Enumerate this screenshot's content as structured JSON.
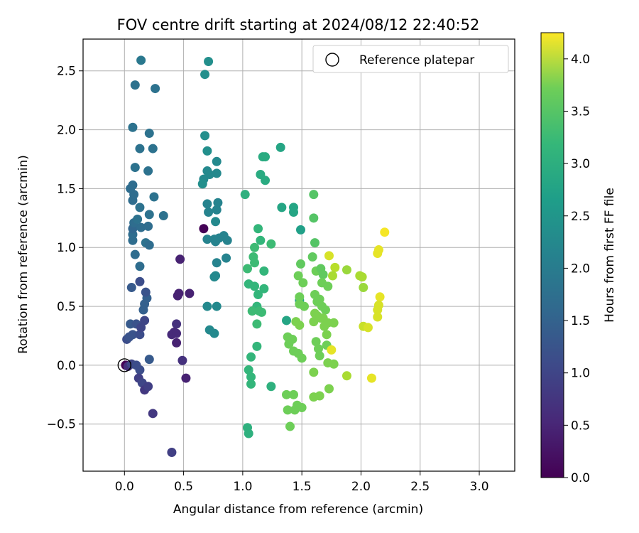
{
  "chart_data": {
    "type": "scatter",
    "title": "FOV centre drift starting at 2024/08/12 22:40:52",
    "xlabel": "Angular distance from reference (arcmin)",
    "ylabel": "Rotation from reference (arcmin)",
    "xlim": [
      -0.35,
      3.3
    ],
    "ylim": [
      -0.9,
      2.77
    ],
    "xticks": [
      0.0,
      0.5,
      1.0,
      1.5,
      2.0,
      2.5,
      3.0
    ],
    "xtick_labels": [
      "0.0",
      "0.5",
      "1.0",
      "1.5",
      "2.0",
      "2.5",
      "3.0"
    ],
    "yticks": [
      -0.5,
      0.0,
      0.5,
      1.0,
      1.5,
      2.0,
      2.5
    ],
    "ytick_labels": [
      "−0.5",
      "0.0",
      "0.5",
      "1.0",
      "1.5",
      "2.0",
      "2.5"
    ],
    "grid": true,
    "legend": {
      "position": "upper-right",
      "entries": [
        {
          "label": "Reference platepar",
          "marker": "open-circle",
          "x": 0.0,
          "y": 0.0
        }
      ]
    },
    "colorbar": {
      "label": "Hours from first FF file",
      "colormap": "viridis",
      "range": [
        0.0,
        4.25
      ],
      "ticks": [
        0.0,
        0.5,
        1.0,
        1.5,
        2.0,
        2.5,
        3.0,
        3.5,
        4.0
      ],
      "tick_labels": [
        "0.0",
        "0.5",
        "1.0",
        "1.5",
        "2.0",
        "2.5",
        "3.0",
        "3.5",
        "4.0"
      ]
    },
    "points": [
      {
        "x": 0.01,
        "y": 0.0,
        "c": 0.02
      },
      {
        "x": 0.03,
        "y": -0.01,
        "c": 0.6
      },
      {
        "x": 0.06,
        "y": 0.01,
        "c": 0.9
      },
      {
        "x": 0.1,
        "y": 0.0,
        "c": 1.0
      },
      {
        "x": 0.13,
        "y": -0.04,
        "c": 1.0
      },
      {
        "x": 0.12,
        "y": -0.11,
        "c": 0.8
      },
      {
        "x": 0.15,
        "y": -0.15,
        "c": 0.9
      },
      {
        "x": 0.17,
        "y": -0.21,
        "c": 0.7
      },
      {
        "x": 0.2,
        "y": -0.18,
        "c": 0.8
      },
      {
        "x": 0.21,
        "y": 0.05,
        "c": 1.2
      },
      {
        "x": 0.24,
        "y": -0.41,
        "c": 0.7
      },
      {
        "x": 0.4,
        "y": -0.74,
        "c": 0.8
      },
      {
        "x": 0.02,
        "y": 0.22,
        "c": 1.0
      },
      {
        "x": 0.04,
        "y": 0.24,
        "c": 1.1
      },
      {
        "x": 0.07,
        "y": 0.26,
        "c": 1.1
      },
      {
        "x": 0.13,
        "y": 0.26,
        "c": 1.0
      },
      {
        "x": 0.05,
        "y": 0.35,
        "c": 1.2
      },
      {
        "x": 0.1,
        "y": 0.35,
        "c": 1.1
      },
      {
        "x": 0.14,
        "y": 0.32,
        "c": 0.9
      },
      {
        "x": 0.17,
        "y": 0.38,
        "c": 0.9
      },
      {
        "x": 0.16,
        "y": 0.47,
        "c": 1.3
      },
      {
        "x": 0.17,
        "y": 0.52,
        "c": 1.3
      },
      {
        "x": 0.19,
        "y": 0.57,
        "c": 1.3
      },
      {
        "x": 0.18,
        "y": 0.62,
        "c": 1.1
      },
      {
        "x": 0.13,
        "y": 0.71,
        "c": 1.0
      },
      {
        "x": 0.06,
        "y": 0.66,
        "c": 1.2
      },
      {
        "x": 0.13,
        "y": 0.84,
        "c": 1.5
      },
      {
        "x": 0.09,
        "y": 0.94,
        "c": 1.5
      },
      {
        "x": 0.07,
        "y": 1.06,
        "c": 1.5
      },
      {
        "x": 0.07,
        "y": 1.11,
        "c": 1.5
      },
      {
        "x": 0.18,
        "y": 1.04,
        "c": 1.6
      },
      {
        "x": 0.21,
        "y": 1.02,
        "c": 1.5
      },
      {
        "x": 0.07,
        "y": 1.16,
        "c": 1.4
      },
      {
        "x": 0.14,
        "y": 1.17,
        "c": 1.5
      },
      {
        "x": 0.2,
        "y": 1.18,
        "c": 1.5
      },
      {
        "x": 0.08,
        "y": 1.21,
        "c": 1.5
      },
      {
        "x": 0.11,
        "y": 1.24,
        "c": 1.6
      },
      {
        "x": 0.21,
        "y": 1.28,
        "c": 1.6
      },
      {
        "x": 0.13,
        "y": 1.34,
        "c": 1.6
      },
      {
        "x": 0.07,
        "y": 1.4,
        "c": 1.5
      },
      {
        "x": 0.08,
        "y": 1.45,
        "c": 1.5
      },
      {
        "x": 0.05,
        "y": 1.5,
        "c": 1.5
      },
      {
        "x": 0.07,
        "y": 1.53,
        "c": 1.5
      },
      {
        "x": 0.25,
        "y": 1.43,
        "c": 1.6
      },
      {
        "x": 0.33,
        "y": 1.27,
        "c": 1.6
      },
      {
        "x": 0.2,
        "y": 1.65,
        "c": 1.6
      },
      {
        "x": 0.09,
        "y": 1.68,
        "c": 1.6
      },
      {
        "x": 0.13,
        "y": 1.84,
        "c": 1.6
      },
      {
        "x": 0.24,
        "y": 1.84,
        "c": 1.6
      },
      {
        "x": 0.21,
        "y": 1.97,
        "c": 1.6
      },
      {
        "x": 0.07,
        "y": 2.02,
        "c": 1.6
      },
      {
        "x": 0.09,
        "y": 2.38,
        "c": 1.6
      },
      {
        "x": 0.26,
        "y": 2.35,
        "c": 1.6
      },
      {
        "x": 0.14,
        "y": 2.59,
        "c": 1.7
      },
      {
        "x": 0.47,
        "y": 0.9,
        "c": 0.4
      },
      {
        "x": 0.45,
        "y": 0.59,
        "c": 0.4
      },
      {
        "x": 0.46,
        "y": 0.61,
        "c": 0.4
      },
      {
        "x": 0.55,
        "y": 0.61,
        "c": 0.4
      },
      {
        "x": 0.44,
        "y": 0.35,
        "c": 0.6
      },
      {
        "x": 0.4,
        "y": 0.26,
        "c": 0.5
      },
      {
        "x": 0.42,
        "y": 0.28,
        "c": 0.5
      },
      {
        "x": 0.44,
        "y": 0.27,
        "c": 0.5
      },
      {
        "x": 0.44,
        "y": 0.19,
        "c": 0.4
      },
      {
        "x": 0.49,
        "y": 0.04,
        "c": 0.6
      },
      {
        "x": 0.52,
        "y": -0.11,
        "c": 0.4
      },
      {
        "x": 0.67,
        "y": 1.16,
        "c": 0.02
      },
      {
        "x": 0.71,
        "y": 2.58,
        "c": 2.1
      },
      {
        "x": 0.68,
        "y": 2.47,
        "c": 2.1
      },
      {
        "x": 0.68,
        "y": 1.95,
        "c": 2.1
      },
      {
        "x": 0.7,
        "y": 1.82,
        "c": 2.1
      },
      {
        "x": 0.78,
        "y": 1.73,
        "c": 2.0
      },
      {
        "x": 0.7,
        "y": 1.65,
        "c": 2.0
      },
      {
        "x": 0.72,
        "y": 1.62,
        "c": 2.0
      },
      {
        "x": 0.78,
        "y": 1.63,
        "c": 2.0
      },
      {
        "x": 0.67,
        "y": 1.58,
        "c": 2.0
      },
      {
        "x": 0.66,
        "y": 1.54,
        "c": 2.1
      },
      {
        "x": 0.7,
        "y": 1.37,
        "c": 1.9
      },
      {
        "x": 0.79,
        "y": 1.38,
        "c": 1.9
      },
      {
        "x": 0.71,
        "y": 1.3,
        "c": 1.9
      },
      {
        "x": 0.78,
        "y": 1.32,
        "c": 1.9
      },
      {
        "x": 0.77,
        "y": 1.22,
        "c": 2.0
      },
      {
        "x": 0.7,
        "y": 1.07,
        "c": 1.9
      },
      {
        "x": 0.76,
        "y": 1.07,
        "c": 1.9
      },
      {
        "x": 0.8,
        "y": 1.08,
        "c": 1.9
      },
      {
        "x": 0.77,
        "y": 1.05,
        "c": 1.9
      },
      {
        "x": 0.84,
        "y": 1.1,
        "c": 1.9
      },
      {
        "x": 0.87,
        "y": 1.06,
        "c": 1.9
      },
      {
        "x": 0.86,
        "y": 0.91,
        "c": 1.9
      },
      {
        "x": 0.78,
        "y": 0.87,
        "c": 1.9
      },
      {
        "x": 0.76,
        "y": 0.75,
        "c": 2.0
      },
      {
        "x": 0.77,
        "y": 0.76,
        "c": 2.0
      },
      {
        "x": 0.7,
        "y": 0.5,
        "c": 2.0
      },
      {
        "x": 0.78,
        "y": 0.5,
        "c": 2.0
      },
      {
        "x": 0.72,
        "y": 0.3,
        "c": 2.0
      },
      {
        "x": 0.76,
        "y": 0.27,
        "c": 2.0
      },
      {
        "x": 1.02,
        "y": 1.45,
        "c": 2.7
      },
      {
        "x": 1.32,
        "y": 1.85,
        "c": 2.5
      },
      {
        "x": 1.17,
        "y": 1.77,
        "c": 2.6
      },
      {
        "x": 1.19,
        "y": 1.77,
        "c": 2.6
      },
      {
        "x": 1.15,
        "y": 1.62,
        "c": 2.6
      },
      {
        "x": 1.19,
        "y": 1.57,
        "c": 2.6
      },
      {
        "x": 1.33,
        "y": 1.34,
        "c": 2.5
      },
      {
        "x": 1.13,
        "y": 1.16,
        "c": 2.8
      },
      {
        "x": 1.15,
        "y": 1.06,
        "c": 2.8
      },
      {
        "x": 1.24,
        "y": 1.03,
        "c": 2.9
      },
      {
        "x": 1.1,
        "y": 1.0,
        "c": 2.9
      },
      {
        "x": 1.09,
        "y": 0.92,
        "c": 2.9
      },
      {
        "x": 1.1,
        "y": 0.87,
        "c": 2.9
      },
      {
        "x": 1.04,
        "y": 0.82,
        "c": 2.9
      },
      {
        "x": 1.18,
        "y": 0.8,
        "c": 2.8
      },
      {
        "x": 1.05,
        "y": 0.69,
        "c": 2.8
      },
      {
        "x": 1.1,
        "y": 0.67,
        "c": 2.8
      },
      {
        "x": 1.13,
        "y": 0.6,
        "c": 2.8
      },
      {
        "x": 1.18,
        "y": 0.65,
        "c": 2.8
      },
      {
        "x": 1.12,
        "y": 0.5,
        "c": 2.8
      },
      {
        "x": 1.14,
        "y": 0.46,
        "c": 2.9
      },
      {
        "x": 1.08,
        "y": 0.46,
        "c": 2.9
      },
      {
        "x": 1.16,
        "y": 0.45,
        "c": 2.9
      },
      {
        "x": 1.12,
        "y": 0.35,
        "c": 2.9
      },
      {
        "x": 1.12,
        "y": 0.16,
        "c": 2.8
      },
      {
        "x": 1.07,
        "y": 0.07,
        "c": 2.8
      },
      {
        "x": 1.05,
        "y": -0.04,
        "c": 2.8
      },
      {
        "x": 1.07,
        "y": -0.1,
        "c": 2.8
      },
      {
        "x": 1.07,
        "y": -0.16,
        "c": 2.8
      },
      {
        "x": 1.24,
        "y": -0.18,
        "c": 2.7
      },
      {
        "x": 1.04,
        "y": -0.53,
        "c": 2.7
      },
      {
        "x": 1.05,
        "y": -0.58,
        "c": 2.7
      },
      {
        "x": 1.43,
        "y": 1.34,
        "c": 2.5
      },
      {
        "x": 1.43,
        "y": 1.3,
        "c": 2.5
      },
      {
        "x": 1.49,
        "y": 1.15,
        "c": 2.4
      },
      {
        "x": 1.37,
        "y": 0.38,
        "c": 2.5
      },
      {
        "x": 1.48,
        "y": 0.55,
        "c": 2.5
      },
      {
        "x": 1.6,
        "y": 1.45,
        "c": 3.1
      },
      {
        "x": 1.6,
        "y": 1.25,
        "c": 3.1
      },
      {
        "x": 1.61,
        "y": 1.04,
        "c": 3.1
      },
      {
        "x": 1.59,
        "y": 0.92,
        "c": 3.2
      },
      {
        "x": 1.49,
        "y": 0.86,
        "c": 3.2
      },
      {
        "x": 1.62,
        "y": 0.8,
        "c": 3.3
      },
      {
        "x": 1.66,
        "y": 0.82,
        "c": 3.2
      },
      {
        "x": 1.68,
        "y": 0.77,
        "c": 3.2
      },
      {
        "x": 1.47,
        "y": 0.76,
        "c": 3.3
      },
      {
        "x": 1.51,
        "y": 0.7,
        "c": 3.3
      },
      {
        "x": 1.67,
        "y": 0.7,
        "c": 3.3
      },
      {
        "x": 1.72,
        "y": 0.67,
        "c": 3.3
      },
      {
        "x": 1.61,
        "y": 0.6,
        "c": 3.3
      },
      {
        "x": 1.65,
        "y": 0.56,
        "c": 3.3
      },
      {
        "x": 1.63,
        "y": 0.54,
        "c": 3.3
      },
      {
        "x": 1.48,
        "y": 0.58,
        "c": 3.3
      },
      {
        "x": 1.48,
        "y": 0.52,
        "c": 3.3
      },
      {
        "x": 1.52,
        "y": 0.5,
        "c": 3.3
      },
      {
        "x": 1.67,
        "y": 0.5,
        "c": 3.3
      },
      {
        "x": 1.7,
        "y": 0.47,
        "c": 3.3
      },
      {
        "x": 1.61,
        "y": 0.44,
        "c": 3.4
      },
      {
        "x": 1.63,
        "y": 0.42,
        "c": 3.4
      },
      {
        "x": 1.66,
        "y": 0.4,
        "c": 3.4
      },
      {
        "x": 1.68,
        "y": 0.4,
        "c": 3.4
      },
      {
        "x": 1.71,
        "y": 0.36,
        "c": 3.4
      },
      {
        "x": 1.72,
        "y": 0.36,
        "c": 3.4
      },
      {
        "x": 1.77,
        "y": 0.36,
        "c": 3.4
      },
      {
        "x": 1.6,
        "y": 0.37,
        "c": 3.4
      },
      {
        "x": 1.45,
        "y": 0.37,
        "c": 3.4
      },
      {
        "x": 1.48,
        "y": 0.34,
        "c": 3.4
      },
      {
        "x": 1.69,
        "y": 0.33,
        "c": 3.4
      },
      {
        "x": 1.71,
        "y": 0.26,
        "c": 3.4
      },
      {
        "x": 1.38,
        "y": 0.24,
        "c": 3.3
      },
      {
        "x": 1.42,
        "y": 0.22,
        "c": 3.3
      },
      {
        "x": 1.39,
        "y": 0.18,
        "c": 3.3
      },
      {
        "x": 1.62,
        "y": 0.2,
        "c": 3.3
      },
      {
        "x": 1.64,
        "y": 0.14,
        "c": 3.3
      },
      {
        "x": 1.71,
        "y": 0.17,
        "c": 3.3
      },
      {
        "x": 1.43,
        "y": 0.12,
        "c": 3.3
      },
      {
        "x": 1.47,
        "y": 0.1,
        "c": 3.3
      },
      {
        "x": 1.5,
        "y": 0.06,
        "c": 3.3
      },
      {
        "x": 1.65,
        "y": 0.08,
        "c": 3.3
      },
      {
        "x": 1.72,
        "y": 0.02,
        "c": 3.4
      },
      {
        "x": 1.77,
        "y": 0.01,
        "c": 3.4
      },
      {
        "x": 1.6,
        "y": -0.06,
        "c": 3.4
      },
      {
        "x": 1.6,
        "y": -0.27,
        "c": 3.4
      },
      {
        "x": 1.65,
        "y": -0.26,
        "c": 3.4
      },
      {
        "x": 1.73,
        "y": -0.2,
        "c": 3.4
      },
      {
        "x": 1.37,
        "y": -0.25,
        "c": 3.3
      },
      {
        "x": 1.43,
        "y": -0.25,
        "c": 3.3
      },
      {
        "x": 1.46,
        "y": -0.34,
        "c": 3.3
      },
      {
        "x": 1.5,
        "y": -0.36,
        "c": 3.3
      },
      {
        "x": 1.38,
        "y": -0.38,
        "c": 3.3
      },
      {
        "x": 1.44,
        "y": -0.38,
        "c": 3.3
      },
      {
        "x": 1.4,
        "y": -0.52,
        "c": 3.3
      },
      {
        "x": 1.73,
        "y": 0.93,
        "c": 4.0
      },
      {
        "x": 1.78,
        "y": 0.83,
        "c": 3.8
      },
      {
        "x": 1.76,
        "y": 0.76,
        "c": 3.7
      },
      {
        "x": 1.88,
        "y": 0.81,
        "c": 3.6
      },
      {
        "x": 1.99,
        "y": 0.76,
        "c": 3.7
      },
      {
        "x": 2.01,
        "y": 0.75,
        "c": 3.7
      },
      {
        "x": 2.02,
        "y": 0.66,
        "c": 3.6
      },
      {
        "x": 2.14,
        "y": 0.95,
        "c": 4.1
      },
      {
        "x": 2.15,
        "y": 0.98,
        "c": 4.1
      },
      {
        "x": 2.2,
        "y": 1.13,
        "c": 4.2
      },
      {
        "x": 2.16,
        "y": 0.58,
        "c": 4.1
      },
      {
        "x": 2.15,
        "y": 0.51,
        "c": 4.0
      },
      {
        "x": 2.14,
        "y": 0.47,
        "c": 4.0
      },
      {
        "x": 2.14,
        "y": 0.41,
        "c": 4.0
      },
      {
        "x": 2.02,
        "y": 0.33,
        "c": 3.9
      },
      {
        "x": 2.06,
        "y": 0.32,
        "c": 4.0
      },
      {
        "x": 1.75,
        "y": 0.13,
        "c": 4.1
      },
      {
        "x": 1.88,
        "y": -0.09,
        "c": 3.7
      },
      {
        "x": 2.09,
        "y": -0.11,
        "c": 4.1
      }
    ]
  }
}
